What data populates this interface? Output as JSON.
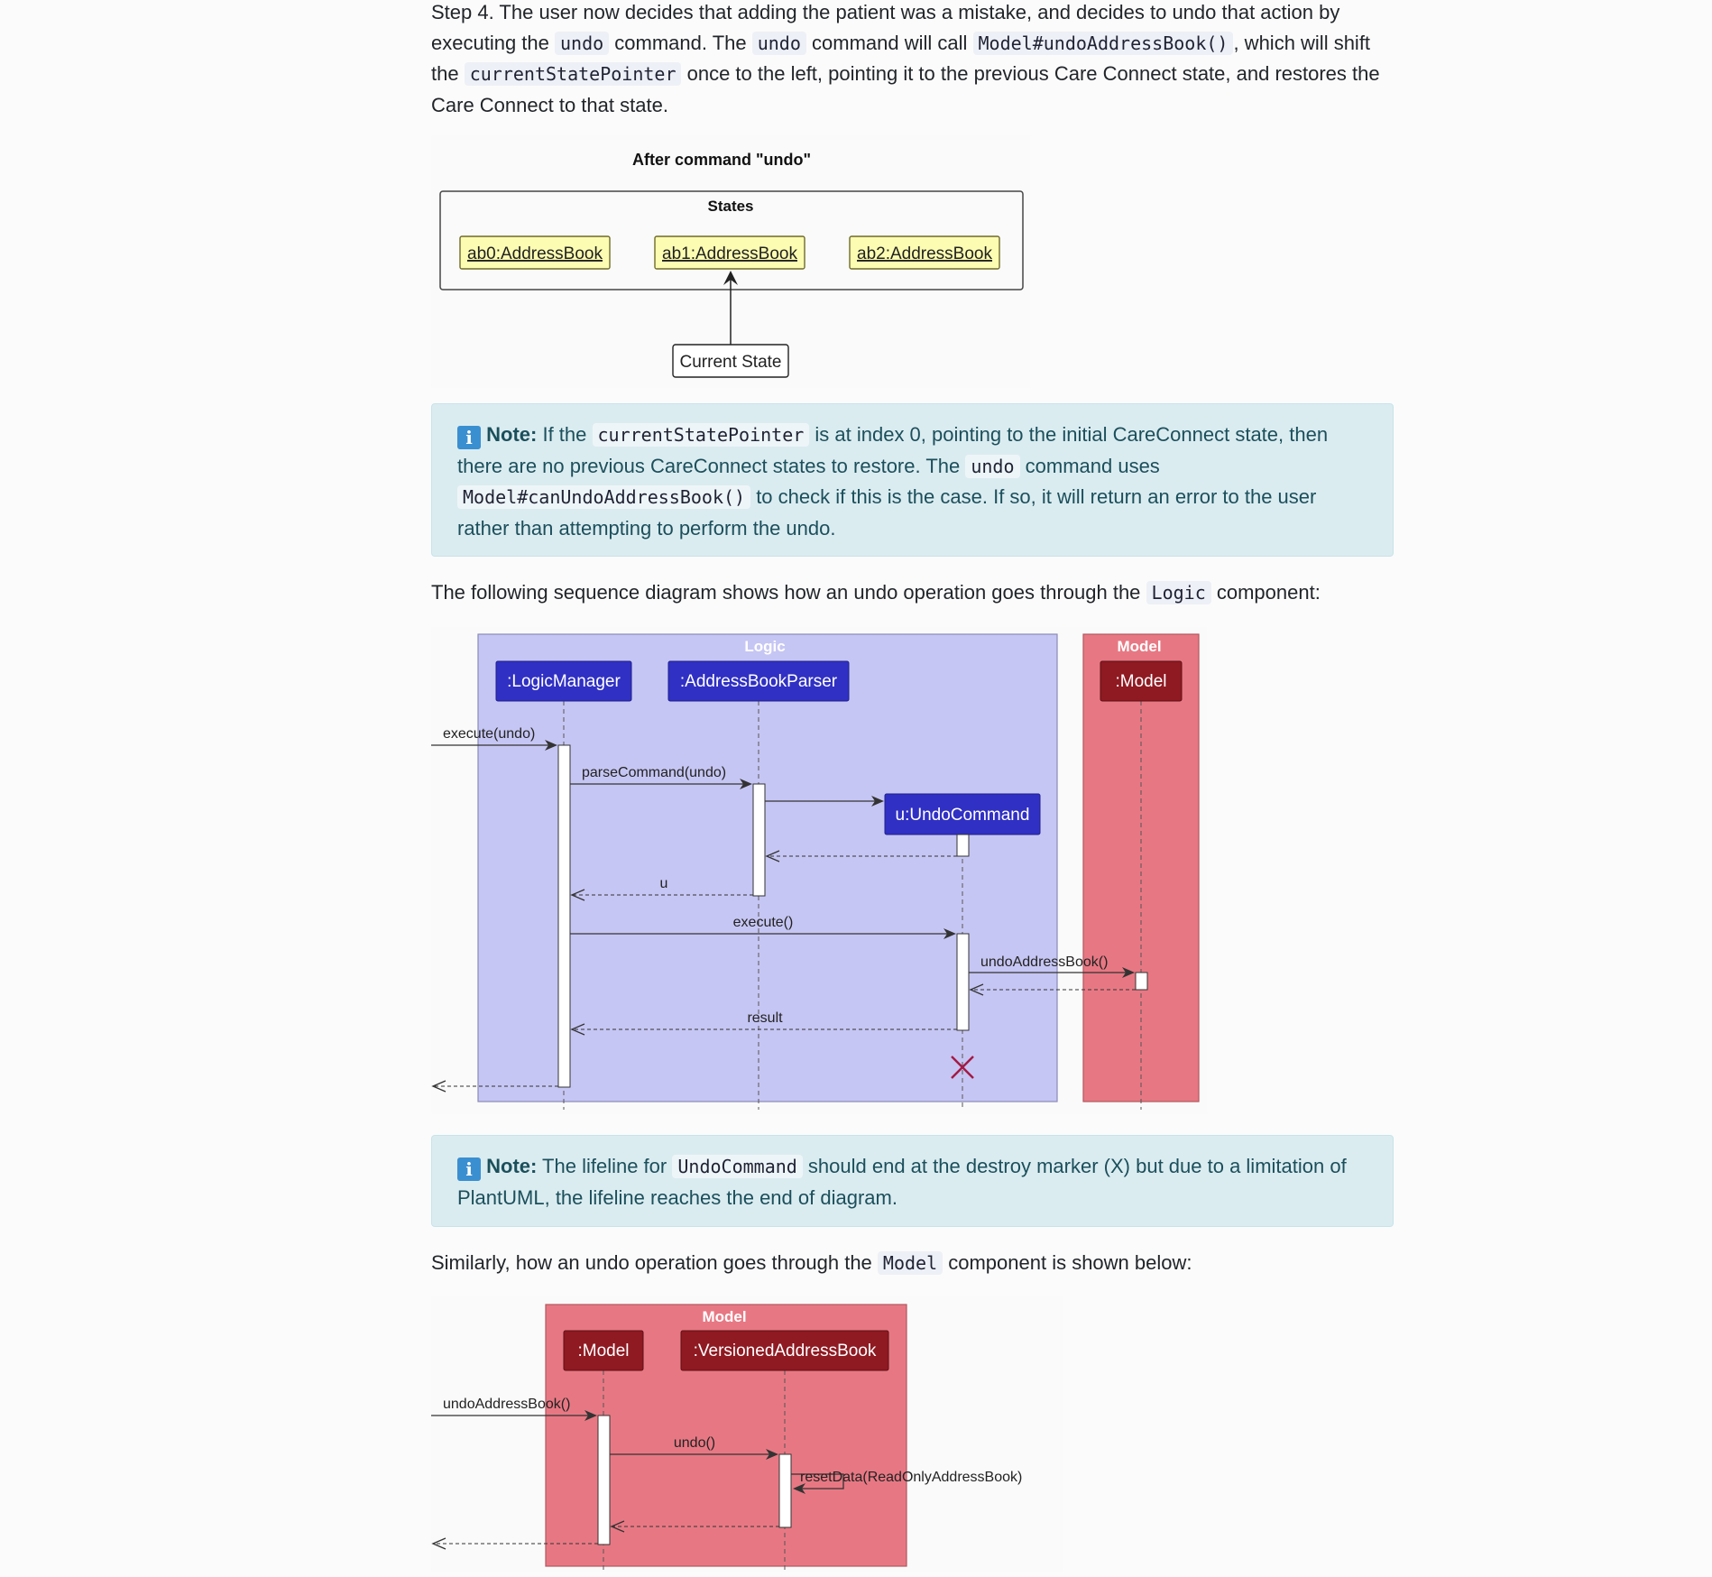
{
  "step4": {
    "t1": "Step 4. The user now decides that adding the patient was a mistake, and decides to undo that action by executing the ",
    "c1": "undo",
    "t2": " command. The ",
    "c2": "undo",
    "t3": " command will call ",
    "c3": "Model#undoAddressBook()",
    "t4": ", which will shift the ",
    "c4": "currentStatePointer",
    "t5": " once to the left, pointing it to the previous Care Connect state, and restores the Care Connect to that state."
  },
  "state_diagram": {
    "title": "After command \"undo\"",
    "frame_label": "States",
    "states": [
      "ab0:AddressBook",
      "ab1:AddressBook",
      "ab2:AddressBook"
    ],
    "pointer_label": "Current State"
  },
  "note1": {
    "icon": "i",
    "label": "Note:",
    "t1": " If the ",
    "c1": "currentStatePointer",
    "t2": " is at index 0, pointing to the initial CareConnect state, then there are no previous CareConnect states to restore. The ",
    "c2": "undo",
    "t3": " command uses ",
    "c3": "Model#canUndoAddressBook()",
    "t4": " to check if this is the case. If so, it will return an error to the user rather than attempting to perform the undo."
  },
  "logic_intro": {
    "t1": "The following sequence diagram shows how an undo operation goes through the ",
    "c1": "Logic",
    "t2": " component:"
  },
  "logic_diagram": {
    "logic_box": "Logic",
    "model_box": "Model",
    "participants": {
      "logic_manager": ":LogicManager",
      "parser": ":AddressBookParser",
      "undo_command": "u:UndoCommand",
      "model": ":Model"
    },
    "messages": {
      "execute_undo": "execute(undo)",
      "parse_command": "parseCommand(undo)",
      "return_u": "u",
      "execute": "execute()",
      "undo_address_book": "undoAddressBook()",
      "result": "result"
    }
  },
  "note2": {
    "icon": "i",
    "label": "Note:",
    "t1": " The lifeline for ",
    "c1": "UndoCommand",
    "t2": " should end at the destroy marker (X) but due to a limitation of PlantUML, the lifeline reaches the end of diagram."
  },
  "model_intro": {
    "t1": "Similarly, how an undo operation goes through the ",
    "c1": "Model",
    "t2": " component is shown below:"
  },
  "model_diagram": {
    "model_box": "Model",
    "participants": {
      "model": ":Model",
      "versioned": ":VersionedAddressBook"
    },
    "messages": {
      "undo_address_book": "undoAddressBook()",
      "undo": "undo()",
      "reset_data": "resetData(ReadOnlyAddressBook)"
    }
  },
  "colors": {
    "logic_box": "#c6c6f4",
    "logic_participant": "#3030c4",
    "model_box": "#e77883",
    "model_participant": "#8f1a22",
    "state_fill": "#fcfcb2",
    "note_bg": "#dbecf0",
    "destroy": "#a31a45"
  }
}
